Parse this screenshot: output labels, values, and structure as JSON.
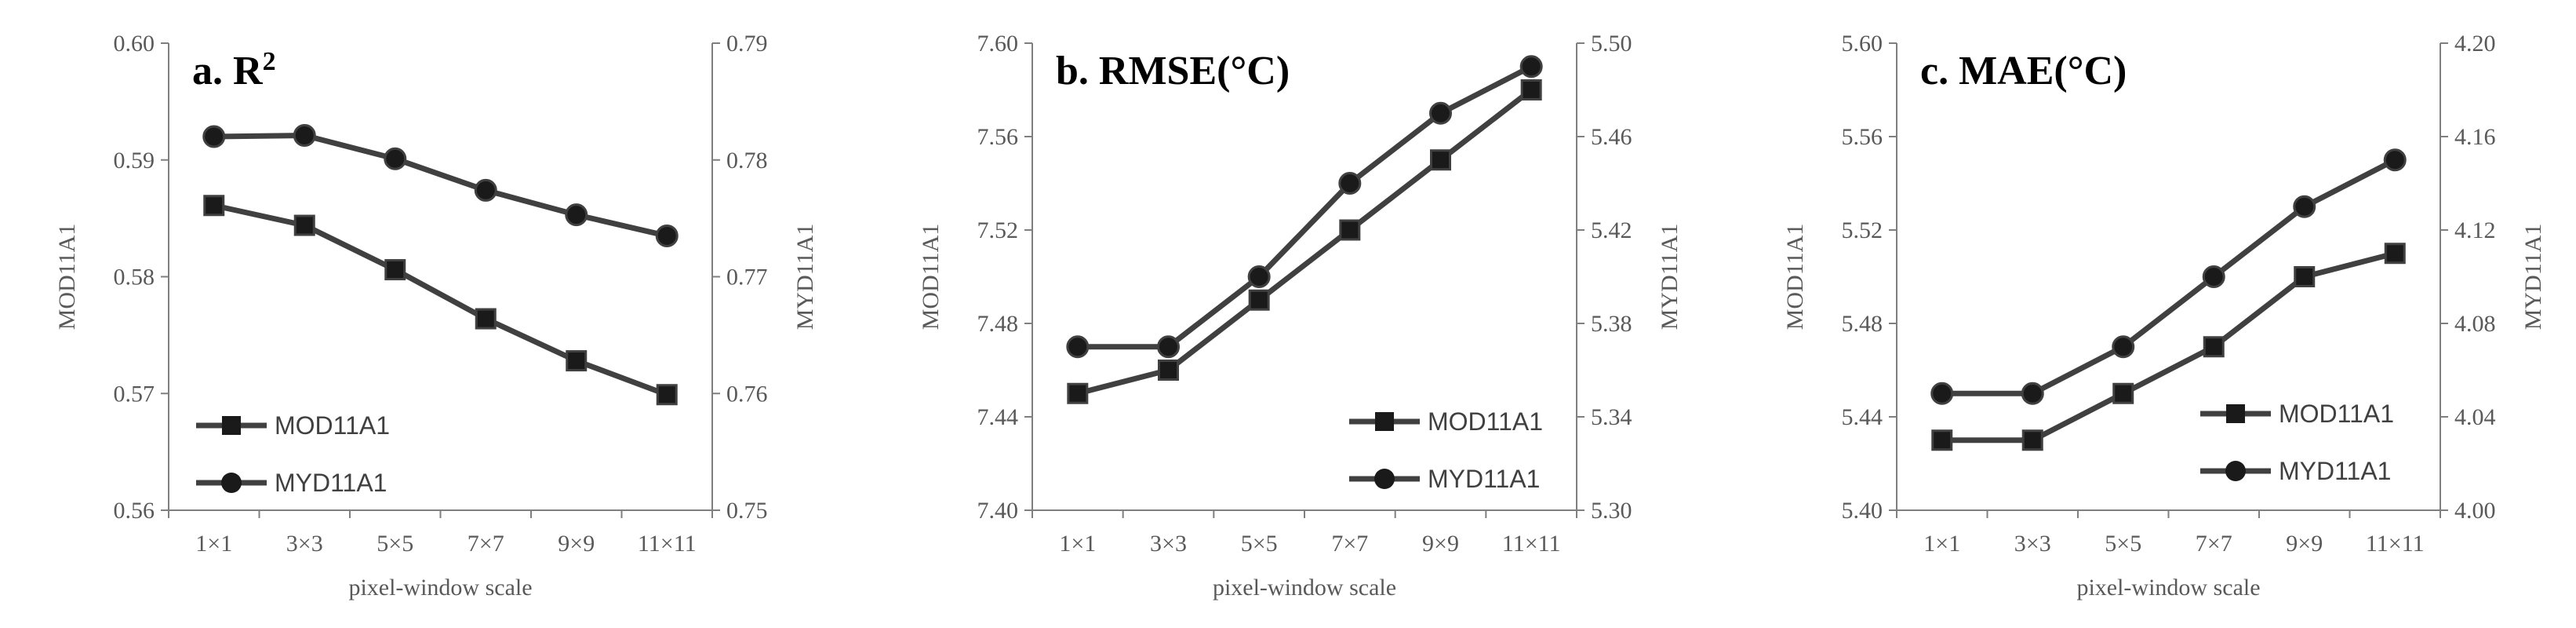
{
  "chart_data": [
    {
      "type": "line",
      "title": "a. R",
      "title_superscript": "2",
      "xlabel": "pixel-window scale",
      "ylabel": "MOD11A1",
      "y2label": "MYD11A1",
      "categories": [
        "1×1",
        "3×3",
        "5×5",
        "7×7",
        "9×9",
        "11×11"
      ],
      "ylim": [
        0.56,
        0.6
      ],
      "yticks": [
        "0.56",
        "0.57",
        "0.58",
        "0.59",
        "0.60"
      ],
      "y2lim": [
        0.75,
        0.79
      ],
      "y2ticks": [
        "0.75",
        "0.76",
        "0.77",
        "0.78",
        "0.79"
      ],
      "legend_position": "bottom-left",
      "grid": false,
      "series": [
        {
          "name": "MOD11A1",
          "axis": "left",
          "marker": "square",
          "values": [
            0.5861,
            0.5844,
            0.5806,
            0.5764,
            0.5728,
            0.5699
          ]
        },
        {
          "name": "MYD11A1",
          "axis": "right",
          "marker": "circle",
          "values": [
            0.782,
            0.7821,
            0.7801,
            0.7774,
            0.7753,
            0.7735
          ]
        }
      ]
    },
    {
      "type": "line",
      "title": "b. RMSE(°C)",
      "xlabel": "pixel-window scale",
      "ylabel": "MOD11A1",
      "y2label": "MYD11A1",
      "categories": [
        "1×1",
        "3×3",
        "5×5",
        "7×7",
        "9×9",
        "11×11"
      ],
      "ylim": [
        7.4,
        7.6
      ],
      "yticks": [
        "7.40",
        "7.44",
        "7.48",
        "7.52",
        "7.56",
        "7.60"
      ],
      "y2lim": [
        5.3,
        5.5
      ],
      "y2ticks": [
        "5.30",
        "5.34",
        "5.38",
        "5.42",
        "5.46",
        "5.50"
      ],
      "legend_position": "bottom-right",
      "grid": false,
      "series": [
        {
          "name": "MOD11A1",
          "axis": "left",
          "marker": "square",
          "values": [
            7.45,
            7.46,
            7.49,
            7.52,
            7.55,
            7.58
          ]
        },
        {
          "name": "MYD11A1",
          "axis": "right",
          "marker": "circle",
          "values": [
            5.37,
            5.37,
            5.4,
            5.44,
            5.47,
            5.49
          ]
        }
      ]
    },
    {
      "type": "line",
      "title": "c. MAE(°C)",
      "xlabel": "pixel-window scale",
      "ylabel": "MOD11A1",
      "y2label": "MYD11A1",
      "categories": [
        "1×1",
        "3×3",
        "5×5",
        "7×7",
        "9×9",
        "11×11"
      ],
      "ylim": [
        5.4,
        5.6
      ],
      "yticks": [
        "5.40",
        "5.44",
        "5.48",
        "5.52",
        "5.56",
        "5.60"
      ],
      "y2lim": [
        4.0,
        4.2
      ],
      "y2ticks": [
        "4.00",
        "4.04",
        "4.08",
        "4.12",
        "4.16",
        "4.20"
      ],
      "legend_position": "bottom-right",
      "grid": false,
      "series": [
        {
          "name": "MOD11A1",
          "axis": "left",
          "marker": "square",
          "values": [
            5.43,
            5.43,
            5.45,
            5.47,
            5.5,
            5.51
          ]
        },
        {
          "name": "MYD11A1",
          "axis": "right",
          "marker": "circle",
          "values": [
            4.05,
            4.05,
            4.07,
            4.1,
            4.13,
            4.15
          ]
        }
      ]
    }
  ],
  "colors": {
    "line": "#404040",
    "marker": "#1a1a1a",
    "axis": "#7f7f7f",
    "tick_text": "#595959",
    "title": "#000000"
  }
}
